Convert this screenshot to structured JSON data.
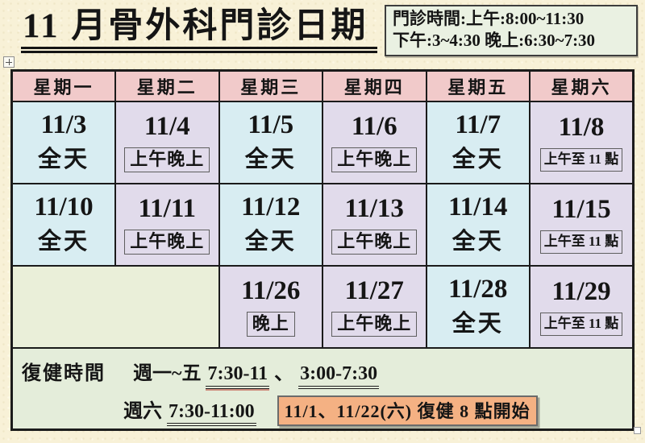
{
  "header": {
    "title": "11 月骨外科門診日期",
    "clinic_hours": {
      "line1": "門診時間:上午:8:00~11:30",
      "line2": "下午:3~4:30 晚上:6:30~7:30"
    }
  },
  "table": {
    "headers": [
      "星期一",
      "星期二",
      "星期三",
      "星期四",
      "星期五",
      "星期六"
    ],
    "rows": [
      [
        {
          "date": "11/3",
          "label": "全天",
          "boxed": false,
          "color": "blue"
        },
        {
          "date": "11/4",
          "label": "上午晚上",
          "boxed": true,
          "color": "purple"
        },
        {
          "date": "11/5",
          "label": "全天",
          "boxed": false,
          "color": "blue"
        },
        {
          "date": "11/6",
          "label": "上午晚上",
          "boxed": true,
          "color": "purple"
        },
        {
          "date": "11/7",
          "label": "全天",
          "boxed": false,
          "color": "blue"
        },
        {
          "date": "11/8",
          "label": "上午至 11 點",
          "boxed": true,
          "small": true,
          "color": "purple"
        }
      ],
      [
        {
          "date": "11/10",
          "label": "全天",
          "boxed": false,
          "color": "blue"
        },
        {
          "date": "11/11",
          "label": "上午晚上",
          "boxed": true,
          "color": "purple"
        },
        {
          "date": "11/12",
          "label": "全天",
          "boxed": false,
          "color": "blue"
        },
        {
          "date": "11/13",
          "label": "上午晚上",
          "boxed": true,
          "color": "purple"
        },
        {
          "date": "11/14",
          "label": "全天",
          "boxed": false,
          "color": "blue"
        },
        {
          "date": "11/15",
          "label": "上午至 11 點",
          "boxed": true,
          "small": true,
          "color": "purple"
        }
      ],
      [
        {
          "date": "",
          "label": "",
          "boxed": false,
          "color": "green",
          "colspan": 2
        },
        {
          "date": "11/26",
          "label": "晚上",
          "boxed": true,
          "color": "purple"
        },
        {
          "date": "11/27",
          "label": "上午晚上",
          "boxed": true,
          "color": "purple"
        },
        {
          "date": "11/28",
          "label": "全天",
          "boxed": false,
          "color": "blue"
        },
        {
          "date": "11/29",
          "label": "上午至 11 點",
          "boxed": true,
          "small": true,
          "color": "purple"
        }
      ]
    ]
  },
  "rehab": {
    "section_label": "復健時間",
    "weekday_label": "週一~五 ",
    "weekday_time_morning": "7:30-11",
    "separator": "、",
    "weekday_time_afternoon": "3:00-7:30",
    "saturday_label": "週六 ",
    "saturday_time": "7:30-11:00",
    "highlight_note": "11/1、11/22(六) 復健 8 點開始"
  },
  "colors": {
    "page-bg": "#f8f1d7",
    "header-pink": "#f1caca",
    "cell-blue": "#d8edf2",
    "cell-purple": "#e1dbeb",
    "cell-green": "#eaefd9",
    "rehab-green": "#e4edda",
    "infobox-green": "#eaf1e2",
    "highlight-orange": "#f4b183",
    "border-dark": "#1b1b1b"
  }
}
